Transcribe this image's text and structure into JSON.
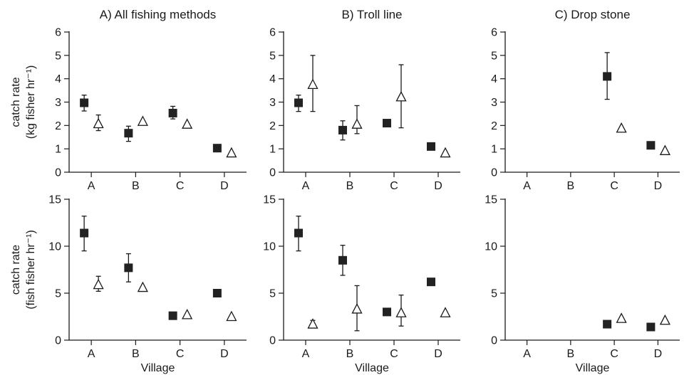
{
  "chart_data": [
    {
      "id": "A_kg",
      "type": "scatter",
      "title": "A) All fishing methods",
      "ylabel_lines": [
        "catch rate",
        "(kg fisher hr⁻¹)"
      ],
      "xlabel": "",
      "categories": [
        "A",
        "B",
        "C",
        "D"
      ],
      "ylim": [
        0,
        6
      ],
      "yticks": [
        0,
        1,
        2,
        3,
        4,
        5,
        6
      ],
      "series": [
        {
          "marker": "square",
          "values": [
            2.97,
            1.67,
            2.53,
            1.03
          ],
          "err_low": [
            2.62,
            1.32,
            2.28,
            null
          ],
          "err_high": [
            3.3,
            1.97,
            2.82,
            null
          ]
        },
        {
          "marker": "triangle",
          "values": [
            2.07,
            2.17,
            2.05,
            0.82
          ],
          "err_low": [
            1.78,
            null,
            null,
            null
          ],
          "err_high": [
            2.45,
            null,
            null,
            null
          ]
        }
      ]
    },
    {
      "id": "B_kg",
      "type": "scatter",
      "title": "B) Troll line",
      "ylabel_lines": [],
      "xlabel": "",
      "categories": [
        "A",
        "B",
        "C",
        "D"
      ],
      "ylim": [
        0,
        6
      ],
      "yticks": [
        0,
        1,
        2,
        3,
        4,
        5,
        6
      ],
      "series": [
        {
          "marker": "square",
          "values": [
            2.97,
            1.8,
            2.1,
            1.1
          ],
          "err_low": [
            2.6,
            1.38,
            null,
            null
          ],
          "err_high": [
            3.3,
            2.2,
            null,
            null
          ]
        },
        {
          "marker": "triangle",
          "values": [
            3.75,
            2.05,
            3.22,
            0.82
          ],
          "err_low": [
            2.6,
            1.65,
            1.9,
            null
          ],
          "err_high": [
            5.0,
            2.85,
            4.6,
            null
          ]
        }
      ]
    },
    {
      "id": "C_kg",
      "type": "scatter",
      "title": "C) Drop stone",
      "ylabel_lines": [],
      "xlabel": "",
      "categories": [
        "A",
        "B",
        "C",
        "D"
      ],
      "ylim": [
        0,
        6
      ],
      "yticks": [
        0,
        1,
        2,
        3,
        4,
        5,
        6
      ],
      "series": [
        {
          "marker": "square",
          "values": [
            null,
            null,
            4.1,
            1.15
          ],
          "err_low": [
            null,
            null,
            3.12,
            null
          ],
          "err_high": [
            null,
            null,
            5.12,
            null
          ]
        },
        {
          "marker": "triangle",
          "values": [
            null,
            null,
            1.88,
            0.92
          ],
          "err_low": [
            null,
            null,
            null,
            null
          ],
          "err_high": [
            null,
            null,
            null,
            null
          ]
        }
      ]
    },
    {
      "id": "A_fish",
      "type": "scatter",
      "title": "",
      "ylabel_lines": [
        "catch rate",
        "(fish fisher hr⁻¹)"
      ],
      "xlabel": "Village",
      "categories": [
        "A",
        "B",
        "C",
        "D"
      ],
      "ylim": [
        0,
        15
      ],
      "yticks": [
        0,
        5,
        10,
        15
      ],
      "series": [
        {
          "marker": "square",
          "values": [
            11.4,
            7.7,
            2.6,
            5.0
          ],
          "err_low": [
            9.5,
            6.2,
            null,
            null
          ],
          "err_high": [
            13.2,
            9.2,
            null,
            null
          ]
        },
        {
          "marker": "triangle",
          "values": [
            5.9,
            5.6,
            2.7,
            2.5
          ],
          "err_low": [
            5.2,
            null,
            null,
            null
          ],
          "err_high": [
            6.8,
            null,
            null,
            null
          ]
        }
      ]
    },
    {
      "id": "B_fish",
      "type": "scatter",
      "title": "",
      "ylabel_lines": [],
      "xlabel": "Village",
      "categories": [
        "A",
        "B",
        "C",
        "D"
      ],
      "ylim": [
        0,
        15
      ],
      "yticks": [
        0,
        5,
        10,
        15
      ],
      "series": [
        {
          "marker": "square",
          "values": [
            11.4,
            8.5,
            3.0,
            6.2
          ],
          "err_low": [
            9.5,
            6.9,
            null,
            null
          ],
          "err_high": [
            13.2,
            10.1,
            null,
            null
          ]
        },
        {
          "marker": "triangle",
          "values": [
            1.7,
            3.3,
            2.9,
            2.9
          ],
          "err_low": [
            null,
            1.0,
            1.5,
            null
          ],
          "err_high": [
            2.1,
            5.8,
            4.8,
            null
          ]
        }
      ]
    },
    {
      "id": "C_fish",
      "type": "scatter",
      "title": "",
      "ylabel_lines": [],
      "xlabel": "Village",
      "categories": [
        "A",
        "B",
        "C",
        "D"
      ],
      "ylim": [
        0,
        15
      ],
      "yticks": [
        0,
        5,
        10,
        15
      ],
      "series": [
        {
          "marker": "square",
          "values": [
            null,
            null,
            1.7,
            1.4
          ],
          "err_low": [
            null,
            null,
            null,
            null
          ],
          "err_high": [
            null,
            null,
            null,
            null
          ]
        },
        {
          "marker": "triangle",
          "values": [
            null,
            null,
            2.3,
            2.1
          ],
          "err_low": [
            null,
            null,
            null,
            null
          ],
          "err_high": [
            null,
            null,
            null,
            null
          ]
        }
      ]
    }
  ]
}
